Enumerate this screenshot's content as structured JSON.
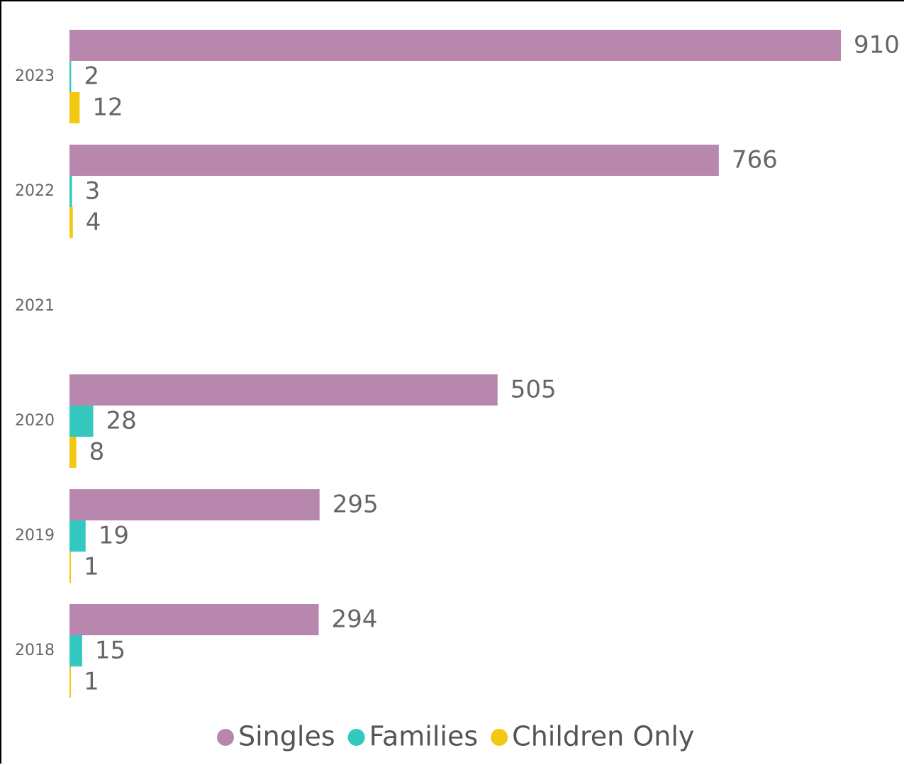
{
  "chart_data": {
    "type": "bar",
    "orientation": "horizontal",
    "title": "",
    "xlabel": "",
    "ylabel": "",
    "categories": [
      "2023",
      "2022",
      "2021",
      "2020",
      "2019",
      "2018"
    ],
    "series": [
      {
        "name": "Singles",
        "color": "#b887ad",
        "values": [
          910,
          766,
          null,
          505,
          295,
          294
        ]
      },
      {
        "name": "Families",
        "color": "#35c8bf",
        "values": [
          2,
          3,
          null,
          28,
          19,
          15
        ]
      },
      {
        "name": "Children Only",
        "color": "#f2c811",
        "values": [
          12,
          4,
          null,
          8,
          1,
          1
        ]
      }
    ],
    "xlim": [
      0,
      910
    ],
    "grid": false,
    "legend_position": "bottom-center",
    "data_labels": true
  }
}
